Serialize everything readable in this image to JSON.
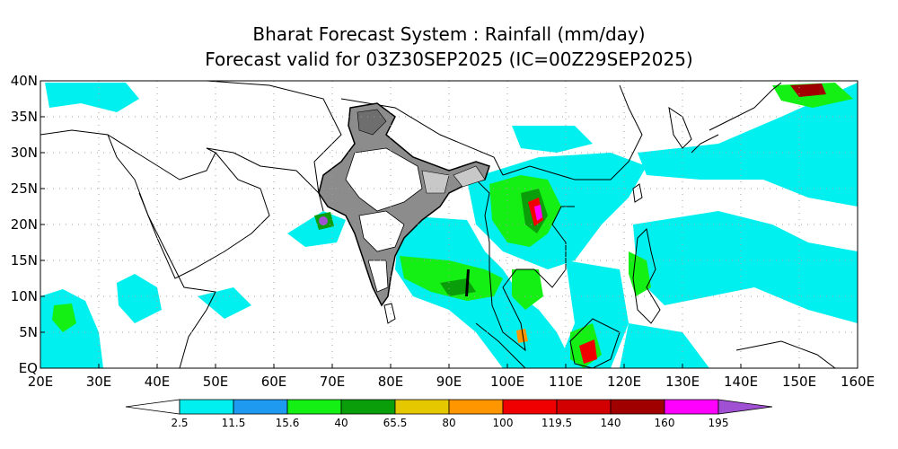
{
  "title_line1": "Bharat Forecast System : Rainfall (mm/day)",
  "title_line2": "Forecast valid for 03Z30SEP2025 (IC=00Z29SEP2025)",
  "map": {
    "lon_range": [
      20,
      160
    ],
    "lat_range": [
      0,
      40
    ],
    "lon_ticks": [
      "20E",
      "30E",
      "40E",
      "50E",
      "60E",
      "70E",
      "80E",
      "90E",
      "100E",
      "110E",
      "120E",
      "130E",
      "140E",
      "150E",
      "160E"
    ],
    "lat_ticks": [
      "EQ",
      "5N",
      "10N",
      "15N",
      "20N",
      "25N",
      "30N",
      "35N",
      "40N"
    ],
    "gridlines": true
  },
  "colorbar": {
    "labels": [
      "2.5",
      "11.5",
      "15.6",
      "40",
      "65.5",
      "80",
      "100",
      "119.5",
      "140",
      "160",
      "195"
    ],
    "colors": [
      "#ffffff",
      "#00f0f0",
      "#1e9bf0",
      "#14f014",
      "#0a9e0a",
      "#e6c800",
      "#ff9600",
      "#f00000",
      "#d20000",
      "#a00000",
      "#ff00ff",
      "#a050d2"
    ]
  },
  "land_color": "#ffffff",
  "india_fill": "#8c8c8c"
}
